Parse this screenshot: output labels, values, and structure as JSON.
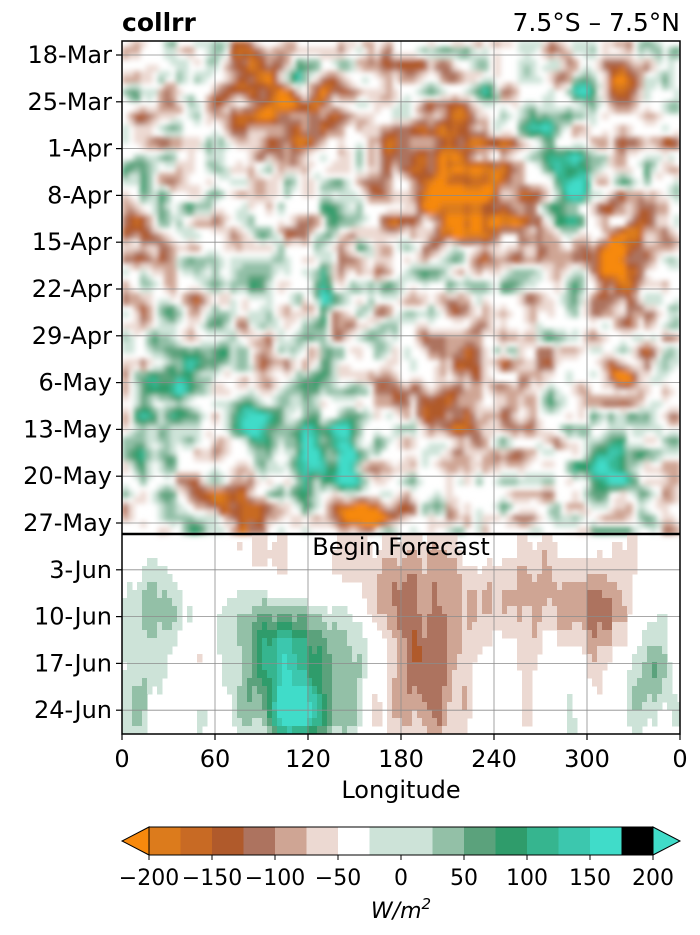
{
  "chart_data": {
    "type": "heatmap",
    "title_left": "collrr",
    "title_right": "7.5°S – 7.5°N",
    "xlabel": "Longitude",
    "x_ticks": [
      "0",
      "60",
      "120",
      "180",
      "240",
      "300",
      "0"
    ],
    "x_range": [
      0,
      360
    ],
    "y_ticks": [
      "18-Mar",
      "25-Mar",
      "1-Apr",
      "8-Apr",
      "15-Apr",
      "22-Apr",
      "29-Apr",
      "6-May",
      "13-May",
      "20-May",
      "27-May",
      "3-Jun",
      "10-Jun",
      "17-Jun",
      "24-Jun"
    ],
    "annotation": "Begin Forecast",
    "forecast_start_between": [
      "27-May",
      "3-Jun"
    ],
    "grid": true,
    "colorbar": {
      "label": "W/m²",
      "ticks": [
        "−200",
        "−150",
        "−100",
        "−50",
        "0",
        "50",
        "100",
        "150",
        "200"
      ],
      "levels": [
        -200,
        -175,
        -150,
        -125,
        -100,
        -75,
        -50,
        -25,
        25,
        50,
        75,
        100,
        125,
        150,
        175,
        200
      ],
      "colors": [
        "#f7890d",
        "#dc7b1c",
        "#c86a24",
        "#b05a2b",
        "#ad735f",
        "#cfa594",
        "#ecd9d2",
        "#ffffff",
        "#cde3d8",
        "#93c0a7",
        "#5ba27c",
        "#2f9c6b",
        "#36b58f",
        "#3cc7ae",
        "#40dcc9"
      ],
      "extend": "both"
    }
  }
}
